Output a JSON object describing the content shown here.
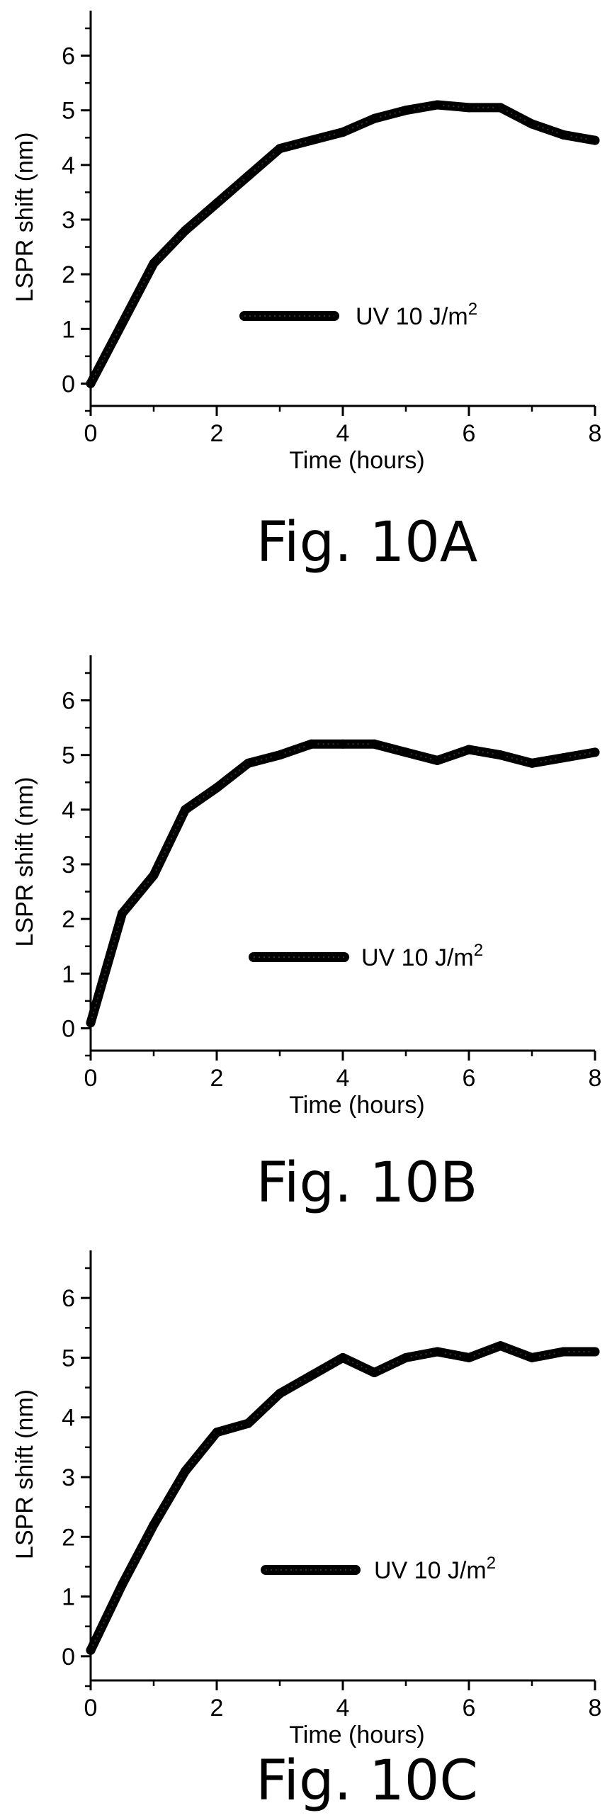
{
  "chart_data": [
    {
      "type": "line",
      "figure_label": "Fig. 10A",
      "xlabel": "Time (hours)",
      "ylabel": "LSPR shift (nm)",
      "xlim": [
        0,
        8
      ],
      "ylim": [
        -0.5,
        6.5
      ],
      "x_ticks": [
        "0",
        "2",
        "4",
        "6",
        "8"
      ],
      "y_ticks": [
        "0",
        "1",
        "2",
        "3",
        "4",
        "5",
        "6"
      ],
      "legend_position": "center",
      "series": [
        {
          "name": "UV 10 J/m",
          "name_superscript": "2",
          "x": [
            0,
            0.5,
            1,
            1.5,
            2,
            2.5,
            3,
            3.5,
            4,
            4.5,
            5,
            5.5,
            6,
            6.5,
            7,
            7.5,
            8
          ],
          "y": [
            0,
            1.1,
            2.2,
            2.8,
            3.3,
            3.8,
            4.3,
            4.45,
            4.6,
            4.85,
            5.0,
            5.1,
            5.05,
            5.05,
            4.75,
            4.55,
            4.45
          ]
        }
      ]
    },
    {
      "type": "line",
      "figure_label": "Fig. 10B",
      "xlabel": "Time (hours)",
      "ylabel": "LSPR shift (nm)",
      "xlim": [
        0,
        8
      ],
      "ylim": [
        -0.5,
        6.5
      ],
      "x_ticks": [
        "0",
        "2",
        "4",
        "6",
        "8"
      ],
      "y_ticks": [
        "0",
        "1",
        "2",
        "3",
        "4",
        "5",
        "6"
      ],
      "legend_position": "center",
      "series": [
        {
          "name": "UV 10 J/m",
          "name_superscript": "2",
          "x": [
            0,
            0.5,
            1,
            1.5,
            2,
            2.5,
            3,
            3.5,
            4,
            4.5,
            5,
            5.5,
            6,
            6.5,
            7,
            7.5,
            8
          ],
          "y": [
            0.1,
            2.1,
            2.8,
            4.0,
            4.4,
            4.85,
            5.0,
            5.2,
            5.2,
            5.2,
            5.05,
            4.9,
            5.1,
            5.0,
            4.85,
            4.95,
            5.05
          ]
        }
      ]
    },
    {
      "type": "line",
      "figure_label": "Fig. 10C",
      "xlabel": "Time (hours)",
      "ylabel": "LSPR shift (nm)",
      "xlim": [
        0,
        8
      ],
      "ylim": [
        -0.5,
        6.5
      ],
      "x_ticks": [
        "0",
        "2",
        "4",
        "6",
        "8"
      ],
      "y_ticks": [
        "0",
        "1",
        "2",
        "3",
        "4",
        "5",
        "6"
      ],
      "legend_position": "center",
      "series": [
        {
          "name": "UV 10 J/m",
          "name_superscript": "2",
          "x": [
            0,
            0.5,
            1,
            1.5,
            2,
            2.5,
            3,
            3.5,
            4,
            4.5,
            5,
            5.5,
            6,
            6.5,
            7,
            7.5,
            8
          ],
          "y": [
            0.1,
            1.2,
            2.2,
            3.1,
            3.75,
            3.9,
            4.4,
            4.7,
            5.0,
            4.75,
            5.0,
            5.1,
            5.0,
            5.2,
            5.0,
            5.1,
            5.1
          ]
        }
      ]
    }
  ]
}
